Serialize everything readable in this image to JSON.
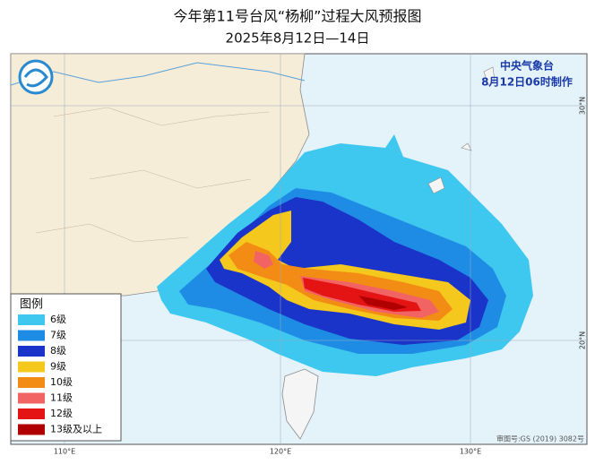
{
  "header": {
    "title": "今年第11号台风“杨柳”过程大风预报图",
    "subtitle": "2025年8月12日—14日"
  },
  "agency": "中央气象台",
  "issued": "8月12日06时制作",
  "legend": {
    "title": "图例",
    "items": [
      {
        "label": "6级",
        "color": "#3ec8f0"
      },
      {
        "label": "7级",
        "color": "#1e8ce4"
      },
      {
        "label": "8级",
        "color": "#1a33c8"
      },
      {
        "label": "9级",
        "color": "#f4c81c"
      },
      {
        "label": "10级",
        "color": "#f28c14"
      },
      {
        "label": "11级",
        "color": "#f26464"
      },
      {
        "label": "12级",
        "color": "#e41414"
      },
      {
        "label": "13级及以上",
        "color": "#b00000"
      }
    ]
  },
  "grid_labels": {
    "longitudes": [
      "110°E",
      "120°E",
      "130°E"
    ],
    "latitudes": [
      "30°N",
      "20°N"
    ]
  },
  "footer": "审图号:GS (2019) 3082号"
}
